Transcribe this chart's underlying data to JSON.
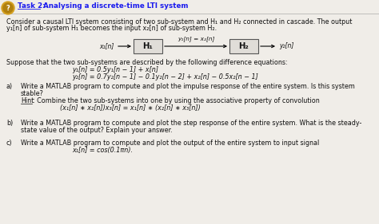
{
  "title_bold": "Task 2:",
  "title_rest": " Analysing a discrete-time LTI system",
  "bg_color": "#f0ede8",
  "para1_line1": "Consider a causal LTI system consisting of two sub-system and H₁ and H₂ connected in cascade. The output",
  "para1_line2": "y₁[n] of sub-system H₁ becomes the input x₂[n] of sub-system H₂.",
  "eq_intro": "Suppose that the two sub-systems are described by the following difference equations:",
  "eq1": "y₁[n] = 0.5y₁[n − 1] + x[n]",
  "eq2": "y₂[n] = 0.7y₂[n − 1] − 0.1y₂[n − 2] + x₂[n] − 0.5x₂[n − 1]",
  "qa_line1": "Write a MATLAB program to compute and plot the impulse response of the entire system. Is this system",
  "qa_line2": "stable?",
  "qa_hint1": ": Combine the two sub-systems into one by using the associative property of convolution",
  "qa_hint2": "(x₁[n] ∗ x₂[n])x₃[n] = x₁[n] ∗ (x₂[n] ∗ x₃[n])",
  "qb_line1": "Write a MATLAB program to compute and plot the step response of the entire system. What is the steady-",
  "qb_line2": "state value of the output? Explain your answer.",
  "qc_line1": "Write a MATLAB program to compute and plot the output of the entire system to input signal",
  "qc_line2": "x₁[n] = cos(0.1πn).",
  "text_color": "#111111",
  "title_color": "#1a1aee",
  "icon_color": "#d4a020"
}
